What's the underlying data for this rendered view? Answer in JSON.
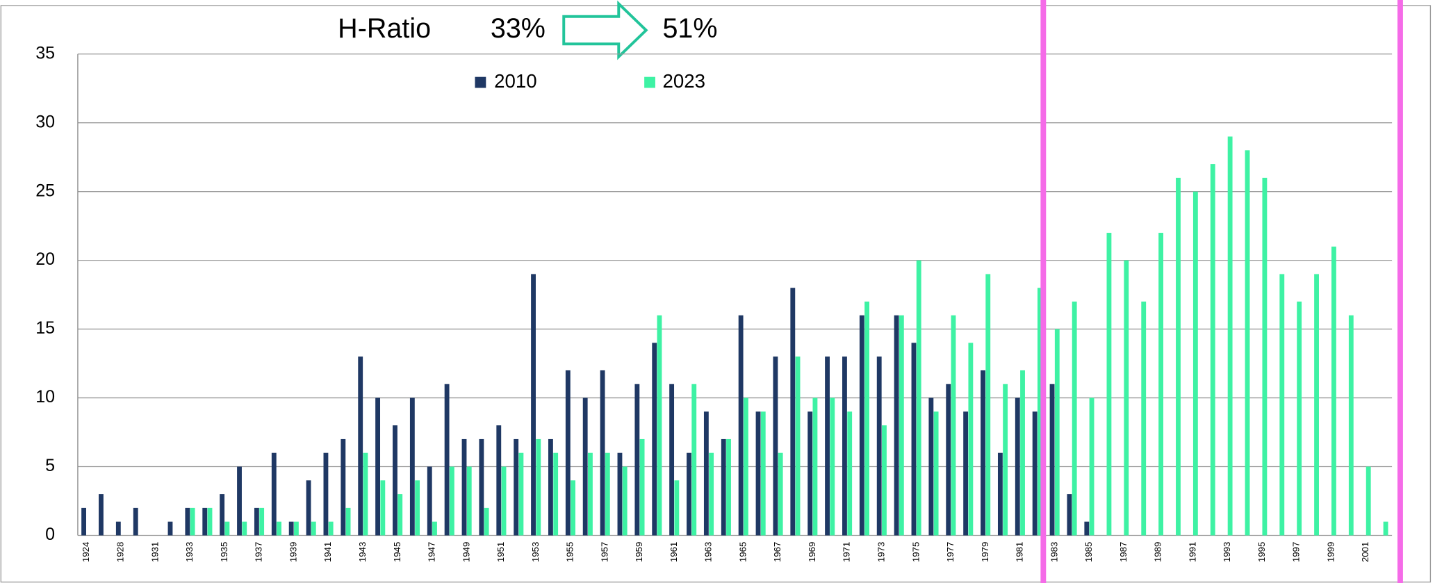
{
  "header": {
    "label": "H-Ratio",
    "from": "33%",
    "to": "51%"
  },
  "chart_data": {
    "type": "bar",
    "categories": [
      "1924",
      null,
      "1928",
      null,
      "1931",
      null,
      "1933",
      null,
      "1935",
      null,
      "1937",
      null,
      "1939",
      null,
      "1941",
      null,
      "1943",
      null,
      "1945",
      null,
      "1947",
      null,
      "1949",
      null,
      "1951",
      null,
      "1953",
      null,
      "1955",
      null,
      "1957",
      null,
      "1959",
      null,
      "1961",
      null,
      "1963",
      null,
      "1965",
      null,
      "1967",
      null,
      "1969",
      null,
      "1971",
      null,
      "1973",
      null,
      "1975",
      null,
      "1977",
      null,
      "1979",
      null,
      "1981",
      null,
      "1983",
      null,
      "1985",
      null,
      "1987",
      null,
      "1989",
      null,
      "1991",
      null,
      "1993",
      null,
      "1995",
      null,
      "1997",
      null,
      "1999",
      null,
      "2001",
      null
    ],
    "series": [
      {
        "name": "2010",
        "color": "#1f3864",
        "values": [
          2,
          3,
          1,
          2,
          0,
          1,
          2,
          2,
          3,
          5,
          2,
          6,
          1,
          4,
          6,
          7,
          13,
          10,
          8,
          10,
          5,
          11,
          7,
          7,
          8,
          7,
          19,
          7,
          12,
          10,
          12,
          6,
          11,
          14,
          11,
          6,
          9,
          7,
          16,
          9,
          13,
          18,
          9,
          13,
          13,
          16,
          13,
          16,
          14,
          10,
          11,
          9,
          12,
          6,
          10,
          9,
          11,
          3,
          1,
          0,
          0,
          0,
          0,
          0,
          0,
          0,
          0,
          0,
          0,
          0,
          0,
          0,
          0,
          0,
          0,
          0
        ]
      },
      {
        "name": "2023",
        "color": "#3ef2a4",
        "values": [
          0,
          0,
          0,
          0,
          0,
          0,
          2,
          2,
          1,
          1,
          2,
          1,
          1,
          1,
          1,
          2,
          6,
          4,
          3,
          4,
          1,
          5,
          5,
          2,
          5,
          6,
          7,
          6,
          4,
          6,
          6,
          5,
          7,
          16,
          4,
          11,
          6,
          7,
          10,
          9,
          6,
          13,
          10,
          10,
          9,
          17,
          8,
          16,
          20,
          9,
          16,
          14,
          19,
          11,
          12,
          18,
          15,
          17,
          10,
          22,
          20,
          17,
          22,
          26,
          25,
          27,
          29,
          28,
          26,
          19,
          17,
          19,
          21,
          16,
          5,
          1
        ]
      }
    ],
    "ylim": [
      0,
      35
    ],
    "yticks": [
      0,
      5,
      10,
      15,
      20,
      25,
      30,
      35
    ],
    "grid": true
  }
}
